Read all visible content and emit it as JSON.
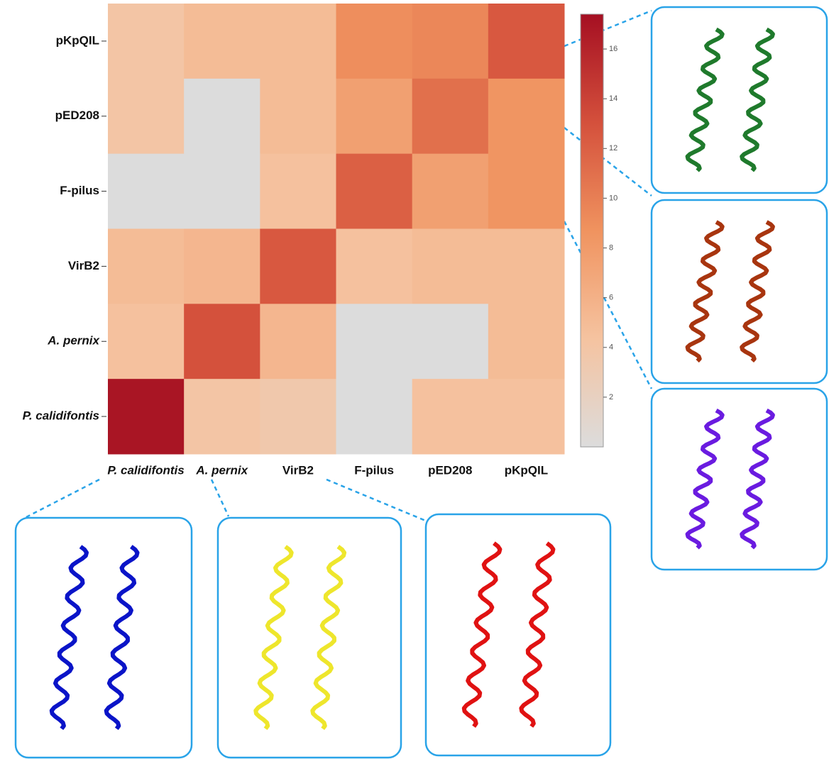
{
  "chart_data": {
    "type": "heatmap",
    "x": [
      "P. calidifontis",
      "A. pernix",
      "VirB2",
      "F-pilus",
      "pED208",
      "pKpQIL"
    ],
    "y": [
      "pKpQIL",
      "pED208",
      "F-pilus",
      "VirB2",
      "A. pernix",
      "P. calidifontis"
    ],
    "values": [
      [
        4,
        5,
        5,
        9,
        9.5,
        12.5
      ],
      [
        4,
        0,
        5,
        7.5,
        11,
        8.5
      ],
      [
        0,
        0,
        4.5,
        12,
        7.5,
        8.5
      ],
      [
        5,
        5.5,
        12.5,
        4.5,
        5,
        5
      ],
      [
        4.5,
        13,
        5.5,
        0,
        0,
        5
      ],
      [
        17,
        4,
        3.5,
        0,
        4.5,
        4.5
      ]
    ],
    "zlim": [
      0,
      17.4
    ],
    "zticks": [
      2,
      4,
      6,
      8,
      10,
      12,
      14,
      16
    ],
    "colormap": [
      "#dcdcdc",
      "#f5c3a0",
      "#f0935f",
      "#d4503c",
      "#a50f22"
    ]
  }
}
